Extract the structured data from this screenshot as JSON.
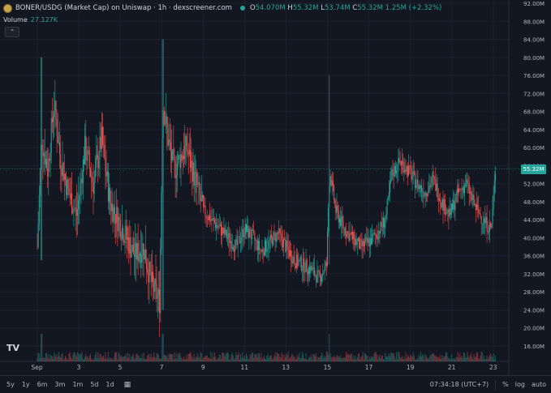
{
  "header": {
    "title": "BONER/USDG (Market Cap) on Uniswap · 1h · dexscreener.com",
    "ohlc": [
      {
        "k": "O",
        "v": "54.070M"
      },
      {
        "k": "H",
        "v": "55.32M"
      },
      {
        "k": "L",
        "v": "53.74M"
      },
      {
        "k": "C",
        "v": "55.32M"
      },
      {
        "k": "",
        "v": "1.25M (+2.32%)"
      }
    ]
  },
  "volume": {
    "label": "Volume",
    "value": "27.127K"
  },
  "price_axis": [
    "92.00M",
    "88.00M",
    "84.00M",
    "80.00M",
    "76.00M",
    "72.00M",
    "68.00M",
    "64.00M",
    "60.00M",
    "56.00M",
    "52.00M",
    "48.00M",
    "44.00M",
    "40.00M",
    "36.00M",
    "32.00M",
    "28.00M",
    "24.00M",
    "20.00M",
    "16.00M"
  ],
  "current_price_label": "55.32M",
  "time_axis": [
    "Sep",
    "3",
    "5",
    "7",
    "9",
    "11",
    "13",
    "15",
    "17",
    "19",
    "21",
    "23"
  ],
  "bottom": {
    "ranges": [
      "5y",
      "1y",
      "6m",
      "3m",
      "1m",
      "5d",
      "1d"
    ],
    "time": "07:34:18 (UTC+7)",
    "percent": "%",
    "log": "log",
    "auto": "auto"
  },
  "colors": {
    "up": "#26a69a",
    "down": "#ef5350",
    "bg": "#131722",
    "grid": "#1e222d"
  },
  "chart_data": {
    "type": "candlestick",
    "unit": "M",
    "ylim": [
      14,
      92
    ],
    "x_ticks": [
      "Sep",
      "3",
      "5",
      "7",
      "9",
      "11",
      "13",
      "15",
      "17",
      "19",
      "21",
      "23"
    ],
    "series": [
      {
        "day": 1.0,
        "close": 38
      },
      {
        "day": 1.2,
        "close": 62
      },
      {
        "day": 1.5,
        "close": 55
      },
      {
        "day": 1.8,
        "close": 70
      },
      {
        "day": 2.1,
        "close": 58
      },
      {
        "day": 2.5,
        "close": 50
      },
      {
        "day": 2.9,
        "close": 45
      },
      {
        "day": 3.3,
        "close": 60
      },
      {
        "day": 3.7,
        "close": 52
      },
      {
        "day": 4.1,
        "close": 62
      },
      {
        "day": 4.5,
        "close": 48
      },
      {
        "day": 4.9,
        "close": 44
      },
      {
        "day": 5.3,
        "close": 40
      },
      {
        "day": 5.7,
        "close": 36
      },
      {
        "day": 6.1,
        "close": 38
      },
      {
        "day": 6.5,
        "close": 30
      },
      {
        "day": 6.9,
        "close": 26
      },
      {
        "day": 7.05,
        "close": 70
      },
      {
        "day": 7.3,
        "close": 62
      },
      {
        "day": 7.6,
        "close": 55
      },
      {
        "day": 7.9,
        "close": 58
      },
      {
        "day": 8.2,
        "close": 60
      },
      {
        "day": 8.6,
        "close": 53
      },
      {
        "day": 9.0,
        "close": 46
      },
      {
        "day": 9.4,
        "close": 44
      },
      {
        "day": 9.8,
        "close": 42
      },
      {
        "day": 10.2,
        "close": 40
      },
      {
        "day": 10.6,
        "close": 38
      },
      {
        "day": 11.0,
        "close": 42
      },
      {
        "day": 11.4,
        "close": 40
      },
      {
        "day": 11.8,
        "close": 37
      },
      {
        "day": 12.2,
        "close": 39
      },
      {
        "day": 12.6,
        "close": 41
      },
      {
        "day": 13.0,
        "close": 38
      },
      {
        "day": 13.4,
        "close": 35
      },
      {
        "day": 13.8,
        "close": 34
      },
      {
        "day": 14.2,
        "close": 33
      },
      {
        "day": 14.6,
        "close": 31
      },
      {
        "day": 14.95,
        "close": 34
      },
      {
        "day": 15.1,
        "close": 55
      },
      {
        "day": 15.4,
        "close": 46
      },
      {
        "day": 15.8,
        "close": 42
      },
      {
        "day": 16.2,
        "close": 40
      },
      {
        "day": 16.6,
        "close": 38
      },
      {
        "day": 17.0,
        "close": 39
      },
      {
        "day": 17.4,
        "close": 41
      },
      {
        "day": 17.8,
        "close": 44
      },
      {
        "day": 18.1,
        "close": 54
      },
      {
        "day": 18.5,
        "close": 57
      },
      {
        "day": 18.9,
        "close": 55
      },
      {
        "day": 19.3,
        "close": 52
      },
      {
        "day": 19.7,
        "close": 50
      },
      {
        "day": 20.1,
        "close": 53
      },
      {
        "day": 20.5,
        "close": 48
      },
      {
        "day": 20.9,
        "close": 45
      },
      {
        "day": 21.3,
        "close": 50
      },
      {
        "day": 21.7,
        "close": 52
      },
      {
        "day": 22.1,
        "close": 47
      },
      {
        "day": 22.5,
        "close": 44
      },
      {
        "day": 22.9,
        "close": 42
      },
      {
        "day": 23.1,
        "close": 55.32
      }
    ]
  }
}
